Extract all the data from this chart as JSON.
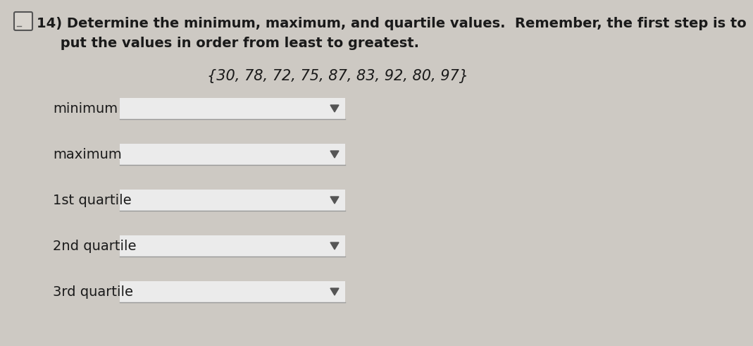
{
  "background_color": "#cdc9c3",
  "title_line1": "14) Determine the minimum, maximum, and quartile values.  Remember, the first step is to",
  "title_line2": "     put the values in order from least to greatest.",
  "set_display": "{30, 78, 72, 75, 87, 83, 92, 80, 97}",
  "labels": [
    "minimum",
    "maximum",
    "1st quartile",
    "2nd quartile",
    "3rd quartile"
  ],
  "title_fontsize": 14,
  "set_fontsize": 15,
  "label_fontsize": 14,
  "dropdown_color": "#ebebeb",
  "dropdown_border": "#bbbbbb",
  "arrow_color": "#555555",
  "text_color": "#1a1a1a",
  "checkbox_color": "#888888"
}
